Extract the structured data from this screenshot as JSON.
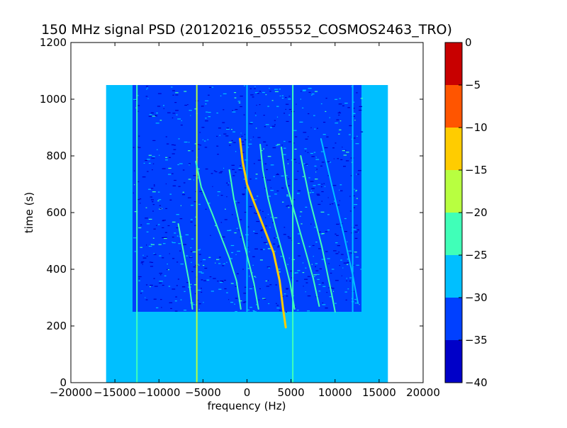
{
  "chart_data": {
    "type": "heatmap",
    "title": "150 MHz signal PSD (20120216_055552_COSMOS2463_TRO)",
    "xlabel": "frequency (Hz)",
    "ylabel": "time (s)",
    "xlim": [
      -20000,
      20000
    ],
    "ylim": [
      0,
      1200
    ],
    "xticks": [
      -20000,
      -15000,
      -10000,
      -5000,
      0,
      5000,
      10000,
      15000,
      20000
    ],
    "xtick_labels": [
      "−20000",
      "−15000",
      "−10000",
      "−5000",
      "0",
      "5000",
      "10000",
      "15000",
      "20000"
    ],
    "yticks": [
      0,
      200,
      400,
      600,
      800,
      1000,
      1200
    ],
    "ytick_labels": [
      "0",
      "200",
      "400",
      "600",
      "800",
      "1000",
      "1200"
    ],
    "colorbar": {
      "range": [
        -40,
        0
      ],
      "ticks": [
        -40,
        -35,
        -30,
        -25,
        -20,
        -15,
        -10,
        -5,
        0
      ],
      "tick_labels": [
        "−40",
        "−35",
        "−30",
        "−25",
        "−20",
        "−15",
        "−10",
        "−5",
        "0"
      ],
      "bands": [
        {
          "from": -40,
          "to": -35,
          "color": "#0000c8"
        },
        {
          "from": -35,
          "to": -30,
          "color": "#0040ff"
        },
        {
          "from": -30,
          "to": -25,
          "color": "#00bfff"
        },
        {
          "from": -25,
          "to": -20,
          "color": "#40ffb8"
        },
        {
          "from": -20,
          "to": -15,
          "color": "#b8ff40"
        },
        {
          "from": -15,
          "to": -10,
          "color": "#ffcc00"
        },
        {
          "from": -10,
          "to": -5,
          "color": "#ff5500"
        },
        {
          "from": -5,
          "to": 0,
          "color": "#c80000"
        }
      ]
    },
    "data_region": {
      "freq_range": [
        -16000,
        16000
      ],
      "time_range": [
        0,
        1050
      ],
      "background_level": -27.5
    },
    "noisy_region": {
      "freq_range": [
        -13000,
        13000
      ],
      "time_range": [
        250,
        1050
      ],
      "level": -33
    },
    "vertical_lines": [
      {
        "freq": -12500,
        "time_range": [
          0,
          1050
        ],
        "level": -22
      },
      {
        "freq": -5700,
        "time_range": [
          0,
          1050
        ],
        "level": -18
      },
      {
        "freq": 0,
        "time_range": [
          250,
          1050
        ],
        "level": -26
      },
      {
        "freq": 5200,
        "time_range": [
          0,
          1050
        ],
        "level": -22
      },
      {
        "freq": 12000,
        "time_range": [
          250,
          1050
        ],
        "level": -26
      }
    ],
    "doppler_tracks": [
      {
        "name": "",
        "level": -14,
        "points": [
          [
            -800,
            860
          ],
          [
            -500,
            780
          ],
          [
            0,
            700
          ],
          [
            1000,
            620
          ],
          [
            2000,
            540
          ],
          [
            3000,
            460
          ],
          [
            3700,
            360
          ],
          [
            4100,
            260
          ],
          [
            4400,
            195
          ]
        ]
      },
      {
        "name": "",
        "level": -22,
        "points": [
          [
            -5800,
            780
          ],
          [
            -5200,
            690
          ],
          [
            -4000,
            600
          ],
          [
            -3000,
            520
          ],
          [
            -2000,
            440
          ],
          [
            -1200,
            360
          ],
          [
            -700,
            260
          ]
        ]
      },
      {
        "name": "",
        "level": -22,
        "points": [
          [
            -2000,
            750
          ],
          [
            -1500,
            650
          ],
          [
            -800,
            550
          ],
          [
            0,
            450
          ],
          [
            800,
            350
          ],
          [
            1300,
            260
          ]
        ]
      },
      {
        "name": "",
        "level": -22,
        "points": [
          [
            1500,
            840
          ],
          [
            1800,
            750
          ],
          [
            2400,
            650
          ],
          [
            3200,
            550
          ],
          [
            4100,
            450
          ],
          [
            4900,
            350
          ],
          [
            5400,
            260
          ]
        ]
      },
      {
        "name": "",
        "level": -22,
        "points": [
          [
            3900,
            830
          ],
          [
            4500,
            700
          ],
          [
            5500,
            590
          ],
          [
            6500,
            480
          ],
          [
            7500,
            370
          ],
          [
            8200,
            270
          ]
        ]
      },
      {
        "name": "",
        "level": -22,
        "points": [
          [
            6100,
            800
          ],
          [
            7100,
            650
          ],
          [
            8500,
            480
          ],
          [
            9700,
            300
          ],
          [
            10000,
            250
          ]
        ]
      },
      {
        "name": "",
        "level": -26,
        "points": [
          [
            8400,
            860
          ],
          [
            9600,
            700
          ],
          [
            11000,
            520
          ],
          [
            12000,
            380
          ],
          [
            12600,
            280
          ]
        ]
      },
      {
        "name": "",
        "level": -22,
        "points": [
          [
            -7800,
            560
          ],
          [
            -7200,
            460
          ],
          [
            -6600,
            360
          ],
          [
            -6200,
            260
          ]
        ]
      }
    ],
    "grid": false,
    "colormap": "jet"
  }
}
